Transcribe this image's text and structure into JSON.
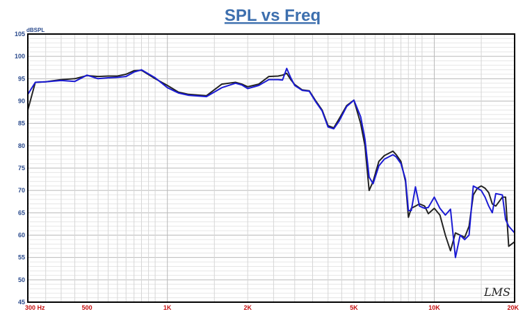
{
  "chart_data": {
    "type": "line",
    "title": "SPL vs Freq",
    "ylabel": "dBSPL",
    "xscale": "log",
    "xlim": [
      300,
      20000
    ],
    "ylim": [
      45,
      105
    ],
    "grid": true,
    "y_ticks": [
      45,
      50,
      55,
      60,
      65,
      70,
      75,
      80,
      85,
      90,
      95,
      100,
      105
    ],
    "x_ticks": [
      {
        "value": 300,
        "label": "300  Hz"
      },
      {
        "value": 500,
        "label": "500"
      },
      {
        "value": 1000,
        "label": "1K"
      },
      {
        "value": 2000,
        "label": "2K"
      },
      {
        "value": 5000,
        "label": "5K"
      },
      {
        "value": 10000,
        "label": "10K"
      },
      {
        "value": 20000,
        "label": "20K"
      }
    ],
    "watermark": "LMS",
    "series": [
      {
        "color": "#222222",
        "x": [
          300,
          320,
          350,
          400,
          450,
          500,
          550,
          600,
          650,
          700,
          750,
          800,
          900,
          1000,
          1100,
          1200,
          1400,
          1600,
          1800,
          1900,
          2000,
          2200,
          2400,
          2600,
          2700,
          2800,
          2900,
          3000,
          3200,
          3400,
          3600,
          3800,
          4000,
          4200,
          4400,
          4700,
          5000,
          5300,
          5500,
          5700,
          5900,
          6200,
          6500,
          7000,
          7200,
          7500,
          7800,
          8000,
          8200,
          8500,
          8800,
          9200,
          9500,
          10000,
          10500,
          11000,
          11500,
          12000,
          12500,
          13000,
          13500,
          14000,
          14500,
          15000,
          15500,
          16000,
          16500,
          17000,
          18000,
          18500,
          19000,
          20000
        ],
        "y": [
          88,
          94.2,
          94.3,
          94.8,
          95,
          95.7,
          95.5,
          95.6,
          95.6,
          96,
          96.8,
          96.9,
          95,
          93.5,
          92,
          91.5,
          91.2,
          93.8,
          94.2,
          93.8,
          93.2,
          93.8,
          95.5,
          95.6,
          95.8,
          96.2,
          94.8,
          93.7,
          92.5,
          92.3,
          90,
          88,
          84.5,
          84,
          86,
          89,
          90.2,
          85,
          80,
          70,
          72,
          76.5,
          77.8,
          78.8,
          78,
          76.5,
          72,
          64,
          66,
          66.5,
          67,
          66.5,
          64.8,
          66,
          64.5,
          60,
          56.5,
          60.5,
          60,
          59.5,
          62,
          69,
          70.5,
          71,
          70.5,
          69.5,
          67,
          66.5,
          68.5,
          68.5,
          57.5,
          58.5
        ]
      },
      {
        "color": "#1a1ad4",
        "x": [
          300,
          320,
          350,
          400,
          450,
          500,
          550,
          600,
          650,
          700,
          750,
          800,
          900,
          1000,
          1100,
          1200,
          1400,
          1600,
          1800,
          1900,
          2000,
          2200,
          2400,
          2600,
          2700,
          2800,
          2900,
          3000,
          3200,
          3400,
          3600,
          3800,
          4000,
          4200,
          4400,
          4700,
          5000,
          5300,
          5500,
          5700,
          5900,
          6200,
          6500,
          7000,
          7200,
          7500,
          7800,
          8000,
          8200,
          8500,
          8800,
          9200,
          9500,
          10000,
          10500,
          11000,
          11500,
          12000,
          12500,
          13000,
          13500,
          14000,
          14500,
          15000,
          15500,
          16000,
          16500,
          17000,
          18000,
          18500,
          19000,
          20000
        ],
        "y": [
          91.5,
          94.2,
          94.3,
          94.6,
          94.4,
          95.8,
          95,
          95.2,
          95.3,
          95.5,
          96.5,
          97,
          95.2,
          93,
          91.8,
          91.3,
          91,
          93,
          94,
          93.6,
          92.8,
          93.5,
          94.8,
          94.8,
          94.7,
          97.3,
          95.2,
          93.5,
          92.4,
          92.2,
          89.8,
          87.8,
          84.2,
          83.8,
          85.5,
          88.8,
          90.2,
          86.5,
          81.5,
          73,
          71.5,
          75.5,
          77,
          78,
          77.5,
          76,
          72.5,
          65.5,
          65.5,
          70.8,
          66.5,
          66,
          66.2,
          68.5,
          66,
          64.5,
          65.8,
          55,
          60,
          59,
          60,
          71,
          70.5,
          70,
          68.5,
          66.5,
          65,
          69.3,
          69,
          63.5,
          62,
          60.5
        ]
      }
    ]
  }
}
